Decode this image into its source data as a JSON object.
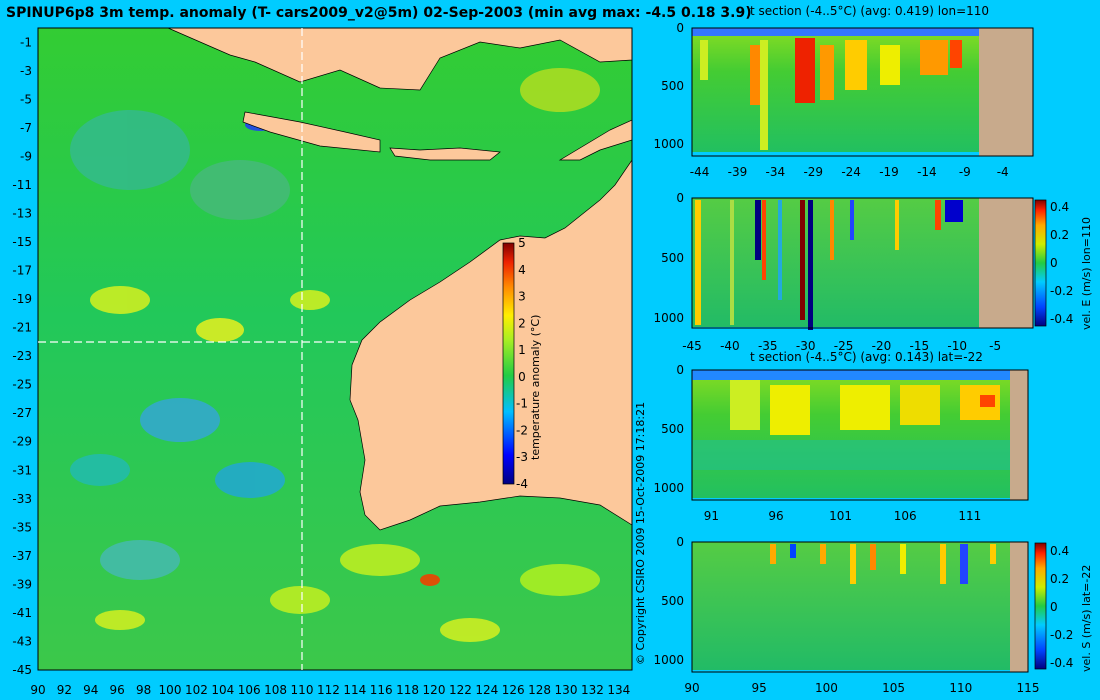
{
  "header": {
    "title": "SPINUP6p8 3m temp. anomaly (T- cars2009_v2@5m) 02-Sep-2003 (min avg max: -4.5 0.18 3.9)"
  },
  "copyright": "© Copyright CSIRO 2009  15-Oct-2009 17:18:21",
  "colors": {
    "background": "#00ccff",
    "land": "#fcc89b",
    "section_land": "#c8aa8c",
    "guide": "#ffffff"
  },
  "chart_data": [
    {
      "type": "heatmap",
      "title": "",
      "x_ticks": [
        "90",
        "92",
        "94",
        "96",
        "98",
        "100",
        "102",
        "104",
        "106",
        "108",
        "110",
        "112",
        "114",
        "116",
        "118",
        "120",
        "122",
        "124",
        "126",
        "128",
        "130",
        "132",
        "134"
      ],
      "y_ticks": [
        "-1",
        "-3",
        "-5",
        "-7",
        "-9",
        "-11",
        "-13",
        "-15",
        "-17",
        "-19",
        "-21",
        "-23",
        "-25",
        "-27",
        "-29",
        "-31",
        "-33",
        "-35",
        "-37",
        "-39",
        "-41",
        "-43",
        "-45"
      ],
      "xlim": [
        90,
        135
      ],
      "ylim": [
        -45,
        0
      ],
      "guides": {
        "lon": 110,
        "lat": -22
      },
      "colorbar": {
        "label": "temperature anomaly (°C)",
        "ticks": [
          "5",
          "4",
          "3",
          "2",
          "1",
          "0",
          "-1",
          "-2",
          "-3",
          "-4"
        ],
        "range": [
          -4,
          5
        ]
      }
    },
    {
      "type": "heatmap",
      "title": "t section (-4..5°C) (avg: 0.419) lon=110",
      "x_ticks": [
        "-44",
        "-39",
        "-34",
        "-29",
        "-24",
        "-19",
        "-14",
        "-9",
        "-4"
      ],
      "y_ticks": [
        "0",
        "500",
        "1000"
      ],
      "xlim": [
        -45,
        0
      ],
      "ylim": [
        1050,
        0
      ]
    },
    {
      "type": "heatmap",
      "title": "",
      "x_ticks": [
        "-45",
        "-40",
        "-35",
        "-30",
        "-25",
        "-20",
        "-15",
        "-10",
        "-5"
      ],
      "y_ticks": [
        "0",
        "500",
        "1000"
      ],
      "xlim": [
        -45,
        0
      ],
      "ylim": [
        1050,
        0
      ],
      "colorbar": {
        "label": "vel. E (m/s) lon=110",
        "ticks": [
          "0.4",
          "0.2",
          "0",
          "-0.2",
          "-0.4"
        ],
        "range": [
          -0.45,
          0.45
        ]
      }
    },
    {
      "type": "heatmap",
      "title": "t section (-4..5°C) (avg: 0.143) lat=-22",
      "x_ticks": [
        "91",
        "96",
        "101",
        "106",
        "111"
      ],
      "y_ticks": [
        "0",
        "500",
        "1000"
      ],
      "xlim": [
        89.5,
        115.5
      ],
      "ylim": [
        1050,
        0
      ]
    },
    {
      "type": "heatmap",
      "title": "",
      "x_ticks": [
        "90",
        "95",
        "100",
        "105",
        "110",
        "115"
      ],
      "y_ticks": [
        "0",
        "500",
        "1000"
      ],
      "xlim": [
        90,
        115
      ],
      "ylim": [
        1050,
        0
      ],
      "colorbar": {
        "label": "vel. S (m/s) lat=-22",
        "ticks": [
          "0.4",
          "0.2",
          "0",
          "-0.2",
          "-0.4"
        ],
        "range": [
          -0.45,
          0.45
        ]
      }
    }
  ]
}
